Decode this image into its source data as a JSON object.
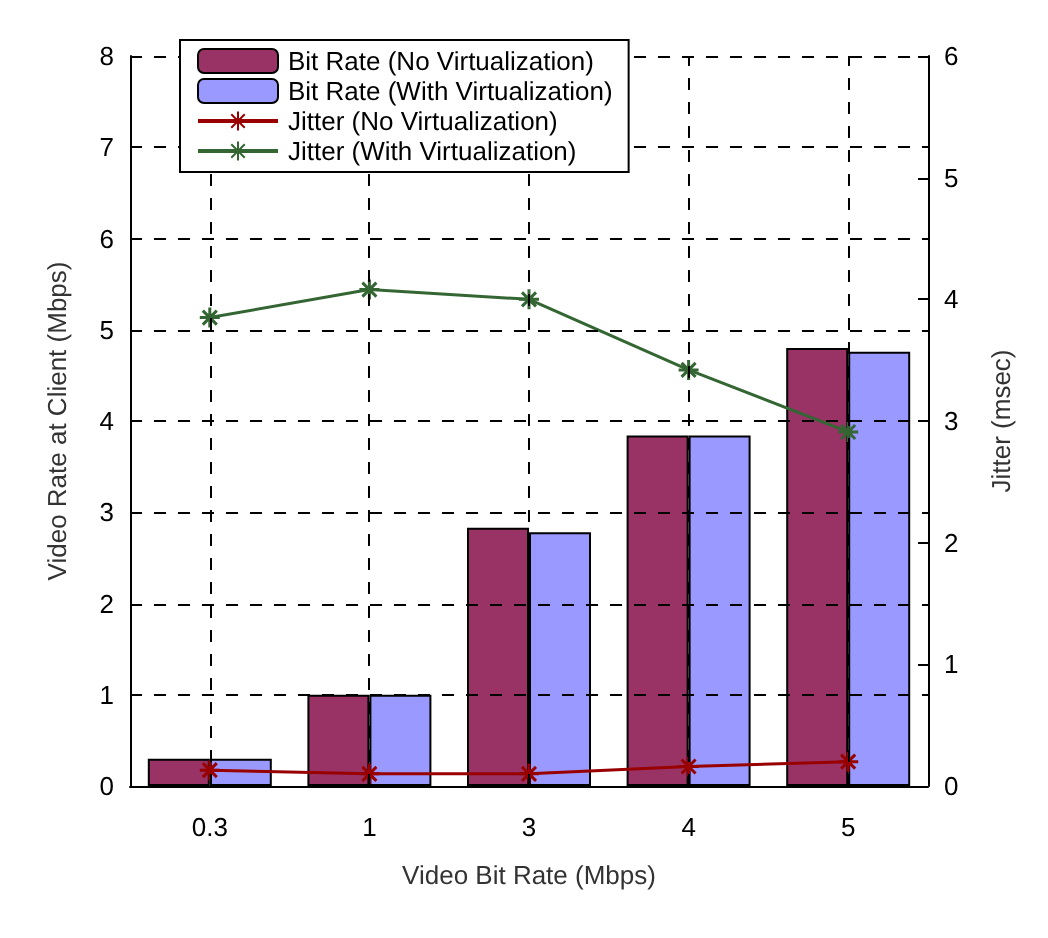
{
  "chart_data": {
    "type": "bar",
    "xlabel": "Video Bit Rate (Mbps)",
    "ylabel": "Video Rate at Client (Mbps)",
    "y2label": "Jitter (msec)",
    "categories": [
      "0.3",
      "1",
      "3",
      "4",
      "5"
    ],
    "series": [
      {
        "name": "Bit Rate (No Virtualization)",
        "color": "#993366",
        "values": [
          0.3,
          1.0,
          2.83,
          3.84,
          4.8
        ]
      },
      {
        "name": "Bit Rate (With Virtualization)",
        "color": "#9999ff",
        "values": [
          0.3,
          1.0,
          2.78,
          3.84,
          4.76
        ]
      },
      {
        "name": "Jitter (No Virtualization)",
        "type": "line",
        "axis": "y2",
        "color": "#990000",
        "marker": "cross",
        "values": [
          0.13,
          0.1,
          0.1,
          0.16,
          0.2
        ]
      },
      {
        "name": "Jitter (With Virtualization)",
        "type": "line",
        "axis": "y2",
        "color": "#336633",
        "marker": "cross",
        "values": [
          3.85,
          4.08,
          4.0,
          3.42,
          2.91
        ]
      }
    ],
    "ylim": [
      0,
      8
    ],
    "yticks": [
      0,
      1,
      2,
      3,
      4,
      5,
      6,
      7,
      8
    ],
    "y2lim": [
      0,
      6
    ],
    "y2ticks": [
      0,
      1,
      2,
      3,
      4,
      5,
      6
    ],
    "grid": true,
    "legend": "top left"
  }
}
